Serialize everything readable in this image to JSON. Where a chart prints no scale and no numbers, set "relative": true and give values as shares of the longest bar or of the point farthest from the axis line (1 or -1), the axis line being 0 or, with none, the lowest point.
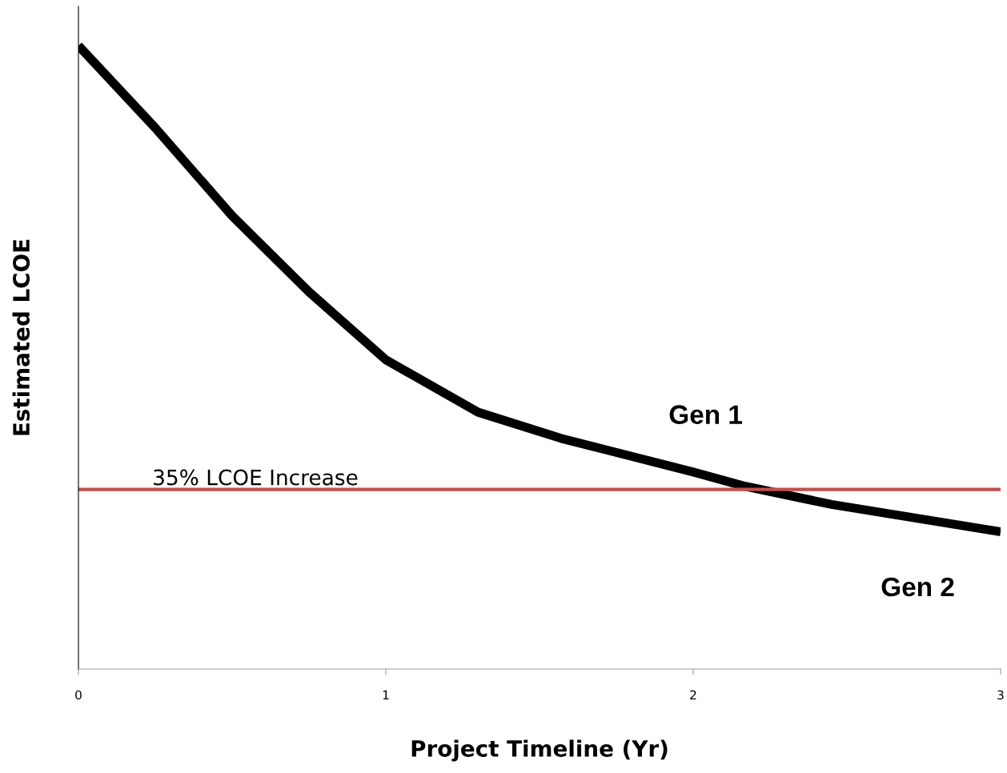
{
  "chart_data": {
    "type": "line",
    "relative": true,
    "xlabel": "Project Timeline (Yr)",
    "ylabel": "Estimated LCOE",
    "xlim": [
      0,
      3
    ],
    "xticks": [
      0,
      1,
      2,
      3
    ],
    "grid": false,
    "legend": false,
    "marker": "none",
    "line_style": "solid",
    "series": [
      {
        "color": "#000000",
        "x": [
          0,
          0.25,
          0.5,
          0.75,
          1.0,
          1.3,
          1.57,
          2.0,
          2.17,
          2.45,
          3.0
        ],
        "values": [
          1.0,
          0.868,
          0.727,
          0.605,
          0.496,
          0.412,
          0.37,
          0.316,
          0.293,
          0.264,
          0.22
        ]
      }
    ],
    "ref_lines": [
      {
        "axis": "y",
        "value": 0.288,
        "label": "35% LCOE Increase",
        "color": "#c0504d",
        "line_style": "solid"
      }
    ],
    "annotations": [
      "Gen 1",
      "Gen 2"
    ]
  }
}
